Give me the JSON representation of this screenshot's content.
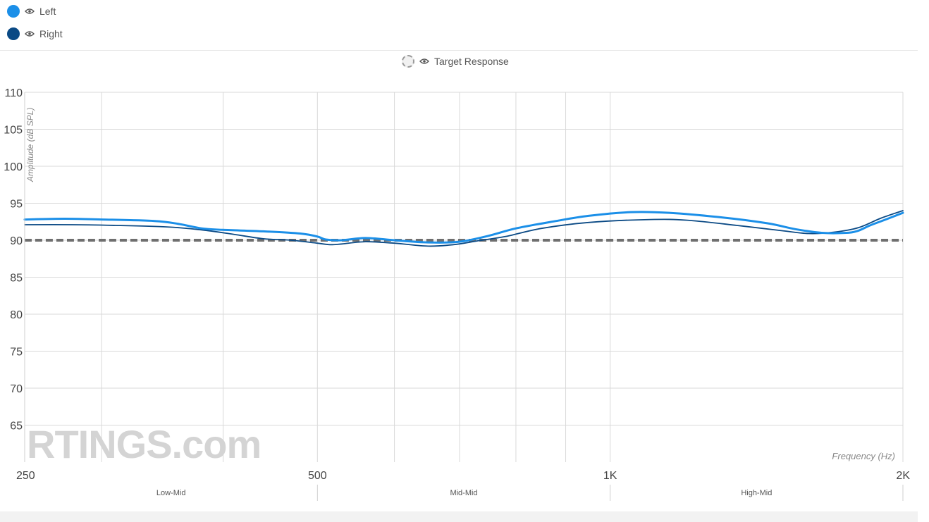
{
  "legend": {
    "left": {
      "label": "Left",
      "color": "#1b8fe8",
      "icon": "eye-icon"
    },
    "right": {
      "label": "Right",
      "color": "#0b4a85",
      "icon": "eye-icon"
    },
    "target": {
      "label": "Target Response",
      "icon": "eye-icon"
    }
  },
  "chart_data": {
    "type": "line",
    "xscale": "log",
    "xlim": [
      250,
      2000
    ],
    "ylim": [
      60,
      110
    ],
    "ylabel": "Amplitude (dB SPL)",
    "xlabel": "Frequency (Hz)",
    "yticks": [
      65,
      70,
      75,
      80,
      85,
      90,
      95,
      100,
      105,
      110
    ],
    "xtick_labels": [
      {
        "value": 250,
        "label": "250"
      },
      {
        "value": 500,
        "label": "500"
      },
      {
        "value": 1000,
        "label": "1K"
      },
      {
        "value": 2000,
        "label": "2K"
      }
    ],
    "minor_gridlines": [
      300,
      400,
      600,
      700,
      800,
      900
    ],
    "bands": [
      {
        "label": "Low-Mid",
        "from": 250,
        "to": 500
      },
      {
        "label": "Mid-Mid",
        "from": 500,
        "to": 1000
      },
      {
        "label": "High-Mid",
        "from": 1000,
        "to": 2000
      }
    ],
    "grid": true,
    "watermark": "RTINGS.com",
    "series": [
      {
        "name": "Left",
        "color": "#1b8fe8",
        "width": 3,
        "points": [
          [
            250,
            92.8
          ],
          [
            275,
            92.9
          ],
          [
            300,
            92.8
          ],
          [
            340,
            92.6
          ],
          [
            360,
            92.2
          ],
          [
            380,
            91.6
          ],
          [
            400,
            91.4
          ],
          [
            440,
            91.2
          ],
          [
            480,
            90.9
          ],
          [
            500,
            90.5
          ],
          [
            510,
            90.1
          ],
          [
            530,
            90.0
          ],
          [
            560,
            90.3
          ],
          [
            600,
            90.0
          ],
          [
            650,
            89.7
          ],
          [
            700,
            89.8
          ],
          [
            750,
            90.6
          ],
          [
            800,
            91.6
          ],
          [
            880,
            92.6
          ],
          [
            950,
            93.3
          ],
          [
            1050,
            93.8
          ],
          [
            1150,
            93.7
          ],
          [
            1300,
            93.1
          ],
          [
            1450,
            92.3
          ],
          [
            1550,
            91.5
          ],
          [
            1650,
            91.0
          ],
          [
            1750,
            91.0
          ],
          [
            1800,
            91.3
          ],
          [
            1850,
            92.0
          ],
          [
            1920,
            92.8
          ],
          [
            2000,
            93.7
          ]
        ]
      },
      {
        "name": "Right",
        "color": "#0b4a85",
        "width": 1.8,
        "points": [
          [
            250,
            92.1
          ],
          [
            280,
            92.1
          ],
          [
            310,
            92.0
          ],
          [
            350,
            91.8
          ],
          [
            380,
            91.4
          ],
          [
            410,
            90.8
          ],
          [
            440,
            90.2
          ],
          [
            470,
            90.0
          ],
          [
            500,
            89.6
          ],
          [
            515,
            89.4
          ],
          [
            530,
            89.5
          ],
          [
            560,
            89.8
          ],
          [
            600,
            89.6
          ],
          [
            650,
            89.2
          ],
          [
            690,
            89.4
          ],
          [
            730,
            89.9
          ],
          [
            780,
            90.5
          ],
          [
            850,
            91.6
          ],
          [
            950,
            92.4
          ],
          [
            1100,
            92.8
          ],
          [
            1200,
            92.7
          ],
          [
            1350,
            92.0
          ],
          [
            1500,
            91.3
          ],
          [
            1600,
            90.9
          ],
          [
            1700,
            91.1
          ],
          [
            1800,
            91.7
          ],
          [
            1900,
            93.0
          ],
          [
            2000,
            94.0
          ]
        ]
      },
      {
        "name": "Target Response",
        "color": "#6f6f6f",
        "width": 4,
        "dashed": true,
        "points": [
          [
            250,
            90
          ],
          [
            2000,
            90
          ]
        ]
      }
    ]
  }
}
